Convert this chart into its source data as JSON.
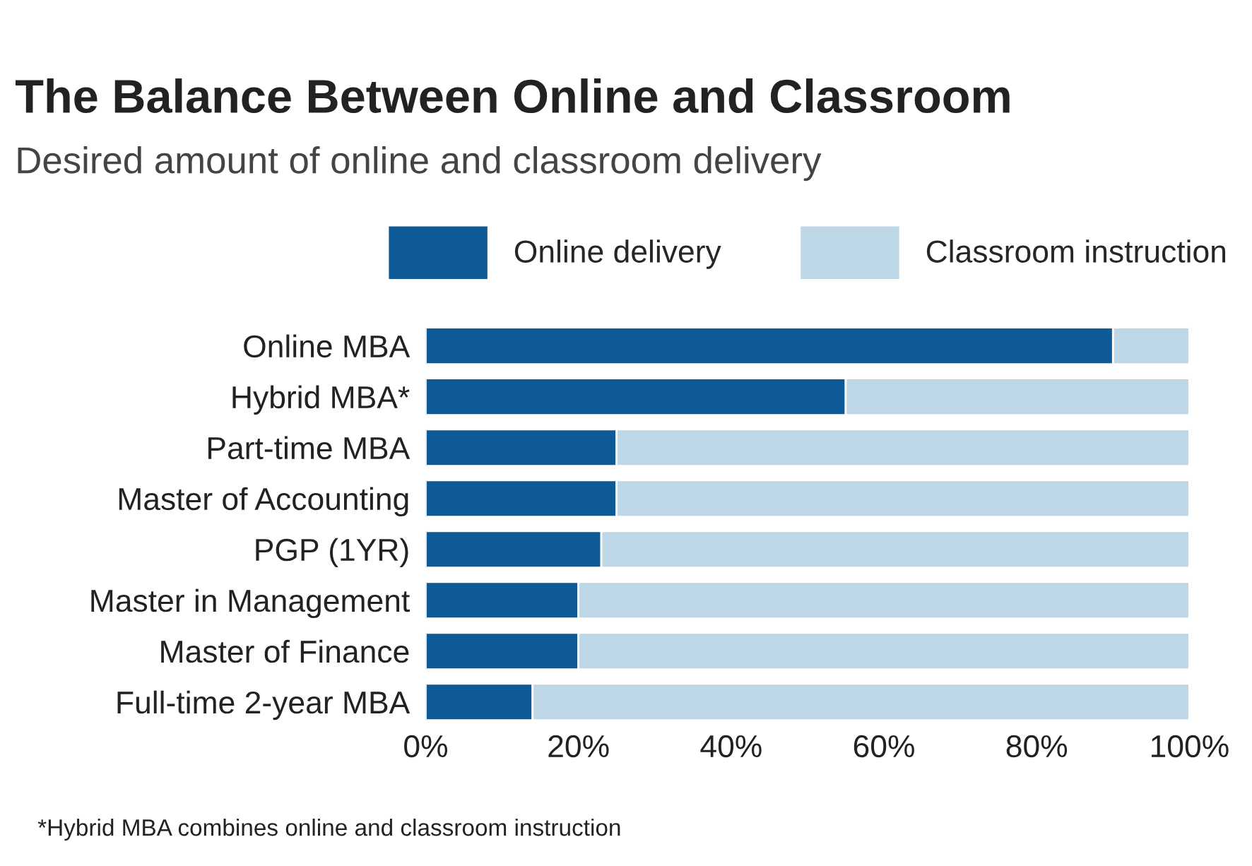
{
  "chart_data": {
    "type": "bar",
    "orientation": "horizontal",
    "stacked": true,
    "title": "The Balance Between Online and Classroom",
    "subtitle": "Desired amount of online and classroom delivery",
    "categories": [
      "Online MBA",
      "Hybrid MBA*",
      "Part-time MBA",
      "Master of Accounting",
      "PGP (1YR)",
      "Master in Management",
      "Master of Finance",
      "Full-time 2-year MBA"
    ],
    "series": [
      {
        "name": "Online delivery",
        "color": "#0e5a97",
        "values": [
          90,
          55,
          25,
          25,
          23,
          20,
          20,
          14
        ]
      },
      {
        "name": "Classroom instruction",
        "color": "#bdd7e7",
        "values": [
          10,
          45,
          75,
          75,
          77,
          80,
          80,
          86
        ]
      }
    ],
    "xlim": [
      0,
      100
    ],
    "xticks": [
      {
        "value": 0,
        "label": "0%"
      },
      {
        "value": 20,
        "label": "20%"
      },
      {
        "value": 40,
        "label": "40%"
      },
      {
        "value": 60,
        "label": "60%"
      },
      {
        "value": 80,
        "label": "80%"
      },
      {
        "value": 100,
        "label": "100%"
      }
    ],
    "legend": "top",
    "grid": false,
    "annotations": [
      "*Hybrid MBA combines online and classroom instruction"
    ]
  }
}
